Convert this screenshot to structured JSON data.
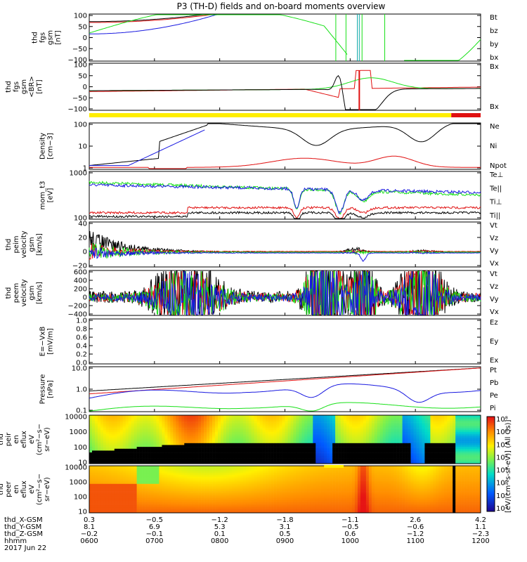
{
  "title": "P3 (TH-D) fields and on-board moments overview",
  "colors": {
    "black": "#000000",
    "red": "#e01010",
    "green": "#18e018",
    "blue": "#1818e0",
    "yellow": "#ffee00",
    "cyan": "#10aaaa"
  },
  "chart_data": [
    {
      "id": "fgs",
      "type": "line",
      "ylabel": [
        "thd",
        "fgs",
        "gsm",
        "[nT]"
      ],
      "yticks": [
        "100",
        "50",
        "0",
        "−50",
        "−100"
      ],
      "ylim": [
        -100,
        100
      ],
      "legend": [
        {
          "text": "Bt",
          "color": "black"
        },
        {
          "text": "bz",
          "color": "red"
        },
        {
          "text": "by",
          "color": "green"
        },
        {
          "text": "bx",
          "color": "blue"
        }
      ]
    },
    {
      "id": "fgs_dsl",
      "type": "line",
      "ylabel": [
        "thd",
        "fgs",
        "gsm",
        "<BR>",
        "[nT]"
      ],
      "yticks": [
        "100",
        "50",
        "0",
        "−50",
        "−100"
      ],
      "ylim": [
        -120,
        120
      ],
      "legend": [
        {
          "text": "Bx",
          "color": "green"
        },
        {
          "text": "Bx",
          "color": "red"
        }
      ]
    },
    {
      "id": "density",
      "type": "line",
      "yscale": "log",
      "ylabel": [
        "Density",
        "[cm−3]"
      ],
      "yticks": [
        "100",
        "10",
        "1"
      ],
      "legend": [
        {
          "text": "Ne",
          "color": "red"
        },
        {
          "text": "Ni",
          "color": "black"
        },
        {
          "text": "Npot",
          "color": "blue"
        }
      ]
    },
    {
      "id": "temp",
      "type": "line",
      "yscale": "log",
      "ylabel": [
        "mom_t3",
        "[eV]"
      ],
      "yticks": [
        "1000",
        "100"
      ],
      "legend": [
        {
          "text": "Te⊥",
          "color": "red"
        },
        {
          "text": "Te||",
          "color": "black"
        },
        {
          "text": "Ti⊥",
          "color": "red"
        },
        {
          "text": "Ti||",
          "color": "green"
        }
      ]
    },
    {
      "id": "peim_v",
      "type": "line",
      "ylabel": [
        "thd",
        "peim",
        "velocity",
        "gsm",
        "[km/s]"
      ],
      "yticks": [
        "40",
        "20",
        "0",
        "−20"
      ],
      "ylim": [
        -20,
        40
      ],
      "legend": [
        {
          "text": "Vt",
          "color": "black"
        },
        {
          "text": "Vz",
          "color": "red"
        },
        {
          "text": "Vy",
          "color": "green"
        },
        {
          "text": "Vx",
          "color": "blue"
        }
      ]
    },
    {
      "id": "peem_v",
      "type": "line",
      "ylabel": [
        "thd",
        "peem",
        "velocity",
        "gsm",
        "[km/s]"
      ],
      "yticks": [
        "600",
        "400",
        "200",
        "0",
        "−200",
        "−400"
      ],
      "ylim": [
        -400,
        600
      ],
      "legend": [
        {
          "text": "Vt",
          "color": "black"
        },
        {
          "text": "Vz",
          "color": "red"
        },
        {
          "text": "Vy",
          "color": "green"
        },
        {
          "text": "Vx",
          "color": "blue"
        }
      ]
    },
    {
      "id": "efield",
      "type": "line",
      "ylabel": [
        "E=−VxB",
        "[mV/m]"
      ],
      "yticks": [
        "1.0",
        "0.8",
        "0.6",
        "0.4",
        "0.2",
        "0.0"
      ],
      "ylim": [
        0,
        1
      ],
      "legend": [
        {
          "text": "Ez",
          "color": "red"
        },
        {
          "text": "Ey",
          "color": "green"
        },
        {
          "text": "Ex",
          "color": "blue"
        }
      ]
    },
    {
      "id": "pressure",
      "type": "line",
      "yscale": "log",
      "ylabel": [
        "Pressure",
        "[nPa]"
      ],
      "yticks": [
        "10.0",
        "1.0",
        "0.1"
      ],
      "legend": [
        {
          "text": "Pt",
          "color": "black"
        },
        {
          "text": "Pb",
          "color": "red"
        },
        {
          "text": "Pe",
          "color": "blue"
        },
        {
          "text": "Pi",
          "color": "blue"
        }
      ]
    },
    {
      "id": "peir",
      "type": "heatmap",
      "yscale": "log",
      "ylabel": [
        "thd",
        "peir",
        "en",
        "eflux",
        "eV",
        "(cm²−s−",
        "sr−eV)"
      ],
      "yticks": [
        "10000",
        "1000",
        "100",
        "10"
      ]
    },
    {
      "id": "peer",
      "type": "heatmap",
      "yscale": "log",
      "ylabel": [
        "thd",
        "peer",
        "en",
        "eflux",
        "eV",
        "(cm²−s−",
        "sr−eV)"
      ],
      "yticks": [
        "10000",
        "1000",
        "100",
        "10"
      ]
    }
  ],
  "colorbar": {
    "ticks": [
      "10⁸",
      "10⁶",
      "10⁴",
      "10²",
      "10⁸",
      "10⁶",
      "10⁴",
      "10²"
    ],
    "label": "[eV/(cm²-s-sr-eV)] (All Qs)]"
  },
  "x_axis": {
    "row_labels": [
      "thd_X-GSM",
      "thd_Y-GSM",
      "thd_Z-GSM",
      "hhmm",
      "2017 Jun 22"
    ],
    "columns": [
      {
        "x": "0.3",
        "y": "8.1",
        "z": "−0.2",
        "t": "0600"
      },
      {
        "x": "−0.5",
        "y": "6.9",
        "z": "−0.1",
        "t": "0700"
      },
      {
        "x": "−1.2",
        "y": "5.3",
        "z": "0.1",
        "t": "0800"
      },
      {
        "x": "−1.8",
        "y": "3.1",
        "z": "0.5",
        "t": "0900"
      },
      {
        "x": "−1.1",
        "y": "−0.5",
        "z": "0.6",
        "t": "1000"
      },
      {
        "x": "2.6",
        "y": "−0.6",
        "z": "−1.2",
        "t": "1100"
      },
      {
        "x": "4.2",
        "y": "1.1",
        "z": "−2.3",
        "t": "1200"
      }
    ]
  }
}
